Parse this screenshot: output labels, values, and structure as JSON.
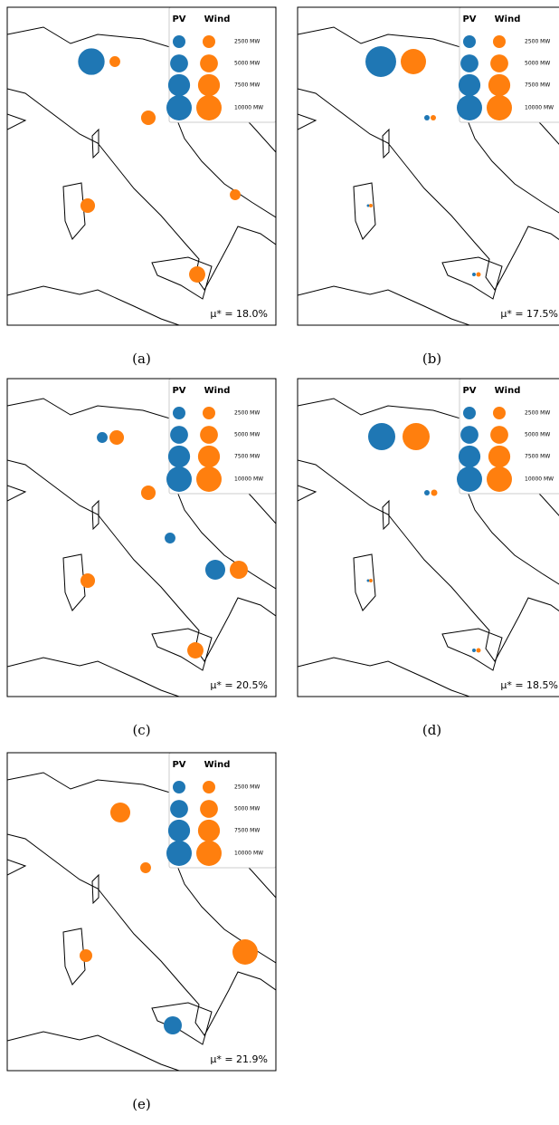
{
  "chart_data": [
    {
      "type": "bubble-map",
      "caption": "(a)",
      "annotation": "μ* = 18.0%",
      "size_legend": [
        {
          "value": 2500,
          "label": "2500 MW"
        },
        {
          "value": 5000,
          "label": "5000 MW"
        },
        {
          "value": 7500,
          "label": "7500 MW"
        },
        {
          "value": 10000,
          "label": "10000 MW"
        }
      ],
      "series": [
        {
          "name": "PV",
          "color": "#1f77b4",
          "values": [
            11000
          ]
        },
        {
          "name": "Wind",
          "color": "#ff7f0e",
          "values": [
            1800,
            3300,
            3300,
            1800,
            4100
          ]
        }
      ]
    },
    {
      "type": "bubble-map",
      "caption": "(b)",
      "annotation": "μ* = 17.5%",
      "size_legend": [
        {
          "value": 2500,
          "label": "2500 MW"
        },
        {
          "value": 5000,
          "label": "5000 MW"
        },
        {
          "value": 7500,
          "label": "7500 MW"
        },
        {
          "value": 10000,
          "label": "10000 MW"
        }
      ],
      "series": [
        {
          "name": "PV",
          "color": "#1f77b4",
          "values": [
            14700,
            460,
            115,
            200
          ]
        },
        {
          "name": "Wind",
          "color": "#ff7f0e",
          "values": [
            10000,
            460,
            200,
            320
          ]
        }
      ]
    },
    {
      "type": "bubble-map",
      "caption": "(c)",
      "annotation": "μ* = 20.5%",
      "size_legend": [
        {
          "value": 2500,
          "label": "2500 MW"
        },
        {
          "value": 5000,
          "label": "5000 MW"
        },
        {
          "value": 7500,
          "label": "7500 MW"
        },
        {
          "value": 10000,
          "label": "10000 MW"
        }
      ],
      "series": [
        {
          "name": "PV",
          "color": "#1f77b4",
          "values": [
            1800,
            1800,
            6200
          ]
        },
        {
          "name": "Wind",
          "color": "#ff7f0e",
          "values": [
            3300,
            3300,
            5100,
            3300,
            4100
          ]
        }
      ]
    },
    {
      "type": "bubble-map",
      "caption": "(d)",
      "annotation": "μ* = 18.5%",
      "size_legend": [
        {
          "value": 2500,
          "label": "2500 MW"
        },
        {
          "value": 5000,
          "label": "5000 MW"
        },
        {
          "value": 7500,
          "label": "7500 MW"
        },
        {
          "value": 10000,
          "label": "10000 MW"
        }
      ],
      "series": [
        {
          "name": "PV",
          "color": "#1f77b4",
          "values": [
            11500,
            460,
            115,
            200
          ]
        },
        {
          "name": "Wind",
          "color": "#ff7f0e",
          "values": [
            11500,
            625,
            200,
            320
          ]
        }
      ]
    },
    {
      "type": "bubble-map",
      "caption": "(e)",
      "annotation": "μ* = 21.9%",
      "size_legend": [
        {
          "value": 2500,
          "label": "2500 MW"
        },
        {
          "value": 5000,
          "label": "5000 MW"
        },
        {
          "value": 7500,
          "label": "7500 MW"
        },
        {
          "value": 10000,
          "label": "10000 MW"
        }
      ],
      "series": [
        {
          "name": "PV",
          "color": "#1f77b4",
          "values": [
            5100
          ]
        },
        {
          "name": "Wind",
          "color": "#ff7f0e",
          "values": [
            6200,
            1800,
            10000,
            2500
          ]
        }
      ]
    }
  ]
}
